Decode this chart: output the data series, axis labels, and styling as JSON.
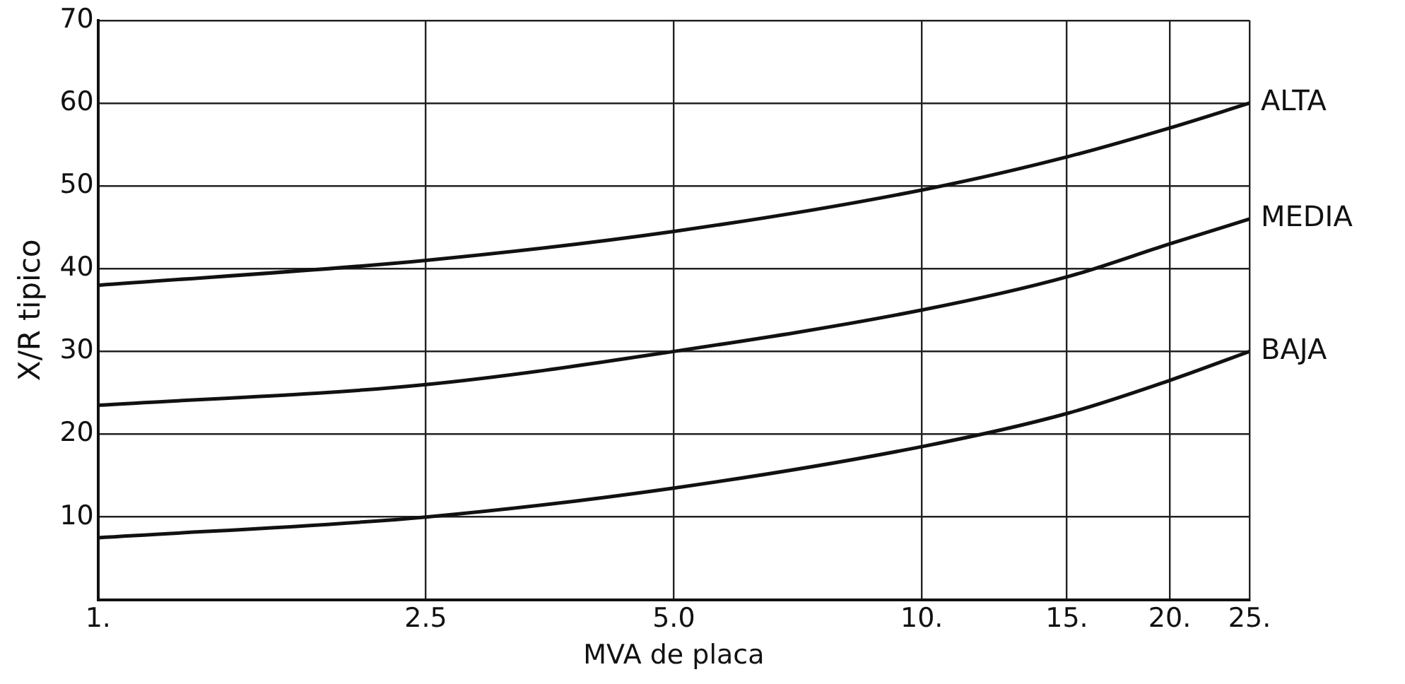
{
  "chart_data": {
    "type": "line",
    "xlabel": "MVA de placa",
    "ylabel": "X/R tipico",
    "log": "x",
    "x": [
      1,
      2.5,
      5,
      10,
      15,
      20,
      25
    ],
    "series": [
      {
        "name": "ALTA",
        "color": "#111111",
        "values": [
          38,
          41,
          44.5,
          49.5,
          53.5,
          57,
          60
        ]
      },
      {
        "name": "MEDIA",
        "color": "#111111",
        "values": [
          23.5,
          26,
          30,
          35,
          39,
          43,
          46
        ]
      },
      {
        "name": "BAJA",
        "color": "#111111",
        "values": [
          7.5,
          10,
          13.5,
          18.5,
          22.5,
          26.5,
          30
        ]
      }
    ],
    "xlim": [
      1,
      25
    ],
    "xticks": [
      {
        "value": 1,
        "label": "1."
      },
      {
        "value": 2.5,
        "label": "2.5"
      },
      {
        "value": 5,
        "label": "5.0"
      },
      {
        "value": 10,
        "label": "10."
      },
      {
        "value": 15,
        "label": "15."
      },
      {
        "value": 20,
        "label": "20."
      },
      {
        "value": 25,
        "label": "25."
      }
    ],
    "ylim": [
      0,
      70
    ],
    "yticks": [
      {
        "value": 0,
        "label": null
      },
      10,
      20,
      30,
      40,
      50,
      60,
      70
    ],
    "grid": true,
    "marker": "none",
    "line_style": "solid",
    "legend": false
  }
}
